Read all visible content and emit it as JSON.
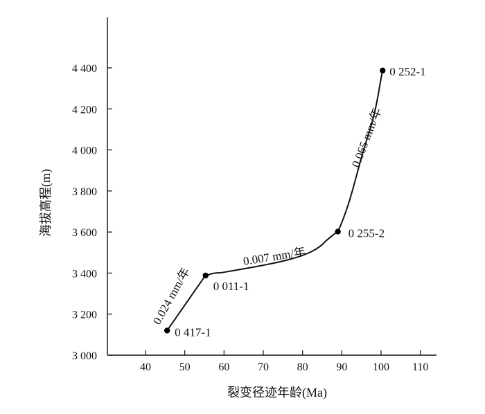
{
  "chart_data": {
    "type": "line",
    "xlabel": "裂变径迹年龄(Ma)",
    "ylabel": "海拔高程(m)",
    "xlim": [
      32,
      116
    ],
    "ylim": [
      3000,
      4600
    ],
    "x_ticks": [
      40,
      50,
      60,
      70,
      80,
      90,
      100,
      110
    ],
    "x_tick_labels": [
      "40",
      "50",
      "60",
      "70",
      "80",
      "90",
      "100",
      "110"
    ],
    "y_ticks": [
      3000,
      3200,
      3400,
      3600,
      3800,
      4000,
      4200,
      4400
    ],
    "y_tick_labels": [
      "3 000",
      "3 200",
      "3 400",
      "3 600",
      "3 800",
      "4 000",
      "4 200",
      "4 400"
    ],
    "grid": false,
    "series": [
      {
        "points": [
          {
            "label": "0 417-1",
            "x": 45.5,
            "y": 3120
          },
          {
            "label": "0 011-1",
            "x": 55.3,
            "y": 3388
          },
          {
            "label": "0 255-2",
            "x": 89.0,
            "y": 3602
          },
          {
            "label": "0 252-1",
            "x": 100.4,
            "y": 4387
          }
        ]
      }
    ],
    "annotations": [
      {
        "text": "0.024 mm/年"
      },
      {
        "text": "0.007 mm/年"
      },
      {
        "text": "0.065 mm/年"
      }
    ],
    "line_color": "#111111",
    "marker_color": "#000000"
  }
}
